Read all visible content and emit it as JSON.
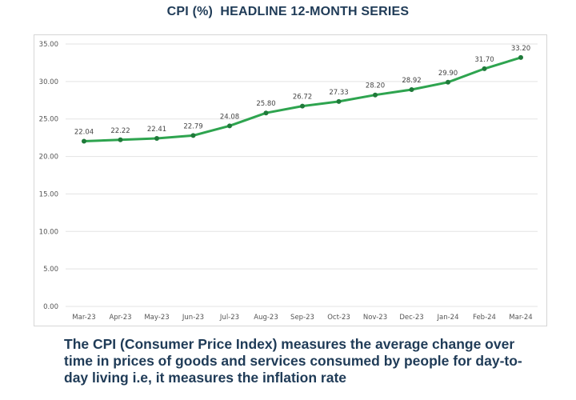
{
  "title": "CPI (%)  HEADLINE 12-MONTH SERIES",
  "caption": "The CPI (Consumer Price Index) measures the average change over time in prices of goods and services consumed by people for day-to-day living i.e, it measures the inflation rate",
  "colors": {
    "line": "#2ea44f",
    "marker": "#1f7a3a",
    "grid": "#e3e3e3",
    "text": "#1f3b57"
  },
  "chart_data": {
    "type": "line",
    "title": "CPI (%)  HEADLINE 12-MONTH SERIES",
    "xlabel": "",
    "ylabel": "",
    "categories": [
      "Mar-23",
      "Apr-23",
      "May-23",
      "Jun-23",
      "Jul-23",
      "Aug-23",
      "Sep-23",
      "Oct-23",
      "Nov-23",
      "Dec-23",
      "Jan-24",
      "Feb-24",
      "Mar-24"
    ],
    "series": [
      {
        "values": [
          22.04,
          22.22,
          22.41,
          22.79,
          24.08,
          25.8,
          26.72,
          27.33,
          28.2,
          28.92,
          29.9,
          31.7,
          33.2
        ]
      }
    ],
    "data_labels": [
      "22.04",
      "22.22",
      "22.41",
      "22.79",
      "24.08",
      "25.80",
      "26.72",
      "27.33",
      "28.20",
      "28.92",
      "29.90",
      "31.70",
      "33.20"
    ],
    "ylim": [
      0,
      35
    ],
    "yticks": [
      "0.00",
      "5.00",
      "10.00",
      "15.00",
      "20.00",
      "25.00",
      "30.00",
      "35.00"
    ],
    "grid": true,
    "legend": "none"
  }
}
